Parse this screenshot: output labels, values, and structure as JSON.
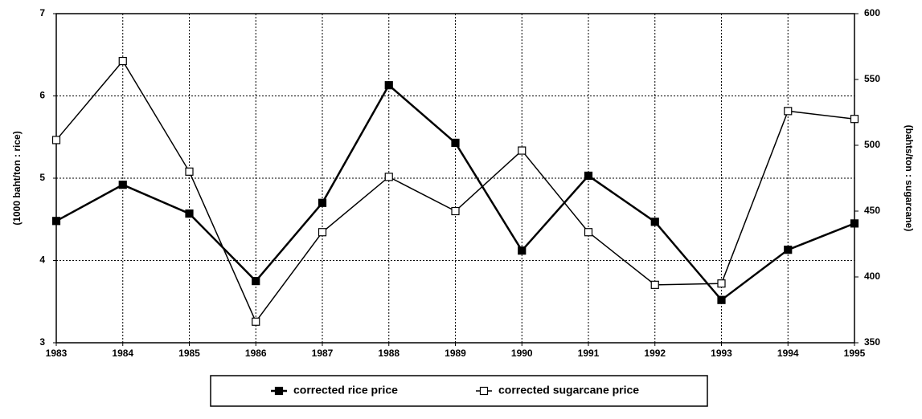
{
  "chart_data": {
    "type": "line",
    "ylabel": "(1000 baht/ton : rice)",
    "y2label": "(bahts/ton : sugarcane)",
    "categories": [
      "1983",
      "1984",
      "1985",
      "1986",
      "1987",
      "1988",
      "1989",
      "1990",
      "1991",
      "1992",
      "1993",
      "1994",
      "1995"
    ],
    "series": [
      {
        "name": "corrected rice price",
        "color": "#000000",
        "marker": "filled",
        "values": [
          4.48,
          4.92,
          4.57,
          3.75,
          4.7,
          6.13,
          5.43,
          4.12,
          5.03,
          4.47,
          3.52,
          4.13,
          4.45
        ]
      },
      {
        "name": "corrected sugarcane price",
        "color": "#000000",
        "marker": "hollow",
        "axis": "y2",
        "values": [
          504,
          564,
          480,
          366,
          434,
          476,
          450,
          496,
          434,
          394,
          395,
          526,
          520
        ]
      }
    ],
    "ylim": [
      3,
      7
    ],
    "yticks": [
      3,
      4,
      5,
      6,
      7
    ],
    "y2lim": [
      350,
      600
    ],
    "y2ticks": [
      350,
      400,
      450,
      500,
      550,
      600
    ],
    "grid": true,
    "legend": "bottom"
  }
}
